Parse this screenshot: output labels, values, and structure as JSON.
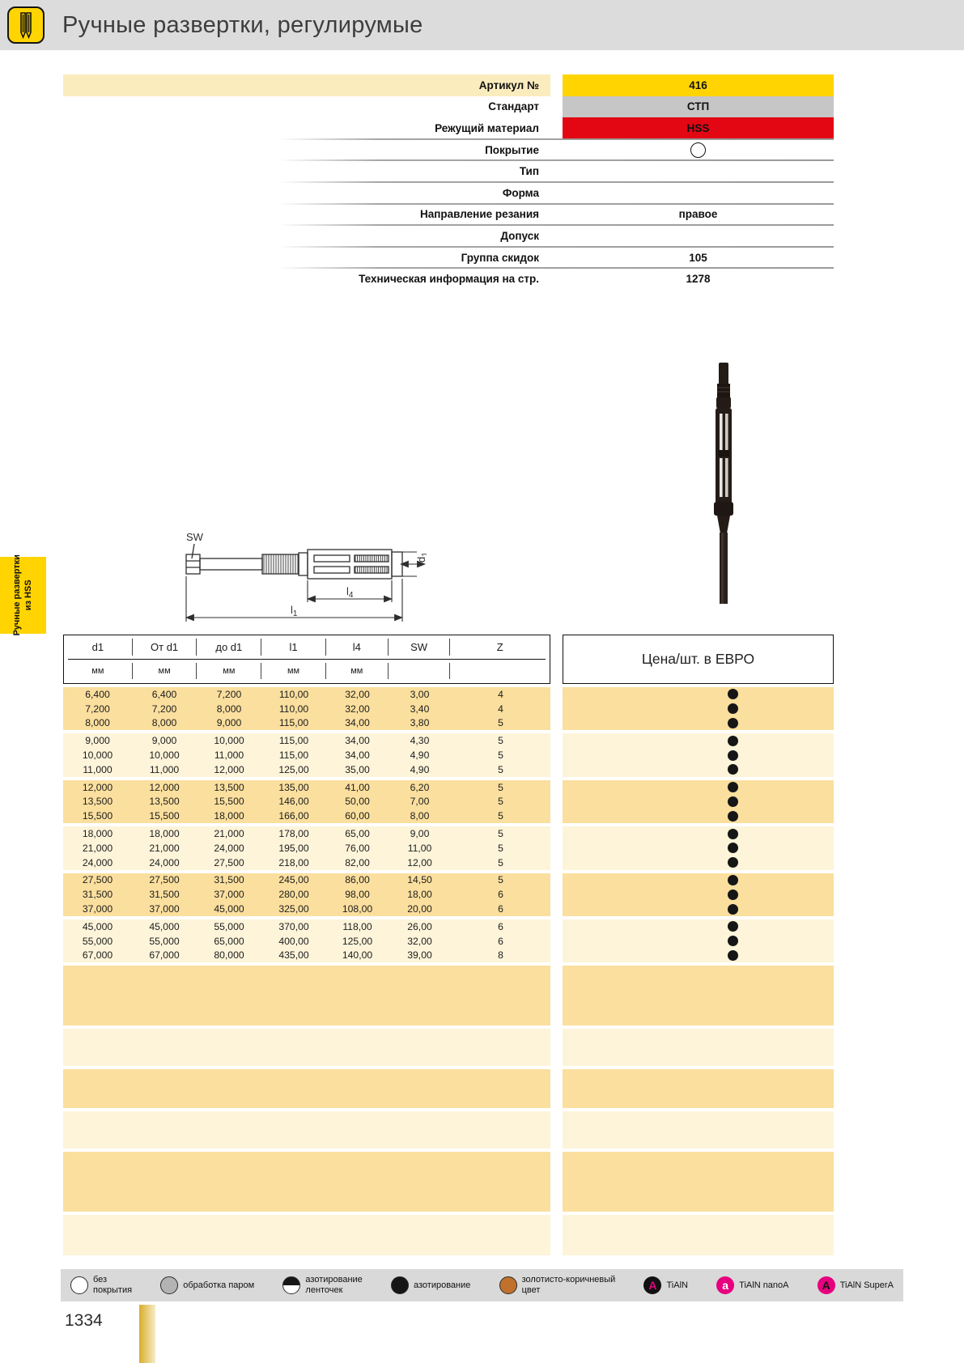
{
  "header": {
    "title": "Ручные развертки, регулирумые"
  },
  "side_tab": {
    "line1": "Ручные развертки",
    "line2": "из HSS"
  },
  "spec": {
    "rows": [
      {
        "label": "Артикул №",
        "value": "416",
        "style": "gold"
      },
      {
        "label": "Стандарт",
        "value": "СТП",
        "style": "gray"
      },
      {
        "label": "Режущий материал",
        "value": "HSS",
        "style": "red"
      },
      {
        "label": "Покрытие",
        "value": "",
        "style": "icon-circle"
      },
      {
        "label": "Тип",
        "value": "",
        "style": "plain"
      },
      {
        "label": "Форма",
        "value": "",
        "style": "plain"
      },
      {
        "label": "Направление резания",
        "value": "правое",
        "style": "plain"
      },
      {
        "label": "Допуск",
        "value": "",
        "style": "plain"
      },
      {
        "label": "Группа скидок",
        "value": "105",
        "style": "plain"
      },
      {
        "label": "Техническая информация на стр.",
        "value": "1278",
        "style": "plain"
      }
    ]
  },
  "drawing": {
    "labels": {
      "sw": "SW",
      "l4_letter": "l",
      "l4_sub": "4",
      "l1_letter": "l",
      "l1_sub": "1",
      "d1_letter": "d",
      "d1_sub": "1"
    }
  },
  "table": {
    "columns": [
      "d1",
      "От d1",
      "до d1",
      "l1",
      "l4",
      "SW",
      "Z"
    ],
    "units": [
      "мм",
      "мм",
      "мм",
      "мм",
      "мм",
      "",
      ""
    ],
    "price_header": "Цена/шт. в ЕВРО",
    "rows": [
      [
        "6,400",
        "6,400",
        "7,200",
        "110,00",
        "32,00",
        "3,00",
        "4"
      ],
      [
        "7,200",
        "7,200",
        "8,000",
        "110,00",
        "32,00",
        "3,40",
        "4"
      ],
      [
        "8,000",
        "8,000",
        "9,000",
        "115,00",
        "34,00",
        "3,80",
        "5"
      ],
      [
        "9,000",
        "9,000",
        "10,000",
        "115,00",
        "34,00",
        "4,30",
        "5"
      ],
      [
        "10,000",
        "10,000",
        "11,000",
        "115,00",
        "34,00",
        "4,90",
        "5"
      ],
      [
        "11,000",
        "11,000",
        "12,000",
        "125,00",
        "35,00",
        "4,90",
        "5"
      ],
      [
        "12,000",
        "12,000",
        "13,500",
        "135,00",
        "41,00",
        "6,20",
        "5"
      ],
      [
        "13,500",
        "13,500",
        "15,500",
        "146,00",
        "50,00",
        "7,00",
        "5"
      ],
      [
        "15,500",
        "15,500",
        "18,000",
        "166,00",
        "60,00",
        "8,00",
        "5"
      ],
      [
        "18,000",
        "18,000",
        "21,000",
        "178,00",
        "65,00",
        "9,00",
        "5"
      ],
      [
        "21,000",
        "21,000",
        "24,000",
        "195,00",
        "76,00",
        "11,00",
        "5"
      ],
      [
        "24,000",
        "24,000",
        "27,500",
        "218,00",
        "82,00",
        "12,00",
        "5"
      ],
      [
        "27,500",
        "27,500",
        "31,500",
        "245,00",
        "86,00",
        "14,50",
        "5"
      ],
      [
        "31,500",
        "31,500",
        "37,000",
        "280,00",
        "98,00",
        "18,00",
        "6"
      ],
      [
        "37,000",
        "37,000",
        "45,000",
        "325,00",
        "108,00",
        "20,00",
        "6"
      ],
      [
        "45,000",
        "45,000",
        "55,000",
        "370,00",
        "118,00",
        "26,00",
        "6"
      ],
      [
        "55,000",
        "55,000",
        "65,000",
        "400,00",
        "125,00",
        "32,00",
        "6"
      ],
      [
        "67,000",
        "67,000",
        "80,000",
        "435,00",
        "140,00",
        "39,00",
        "8"
      ]
    ],
    "empty_band_count": 6
  },
  "legend": {
    "items": [
      {
        "icon": "no-coating-icon",
        "type": "circle",
        "fill": "#ffffff",
        "label": "без\nпокрытия"
      },
      {
        "icon": "steam-treated-icon",
        "type": "circle",
        "fill": "#b3b3b3",
        "label": "обработка паром"
      },
      {
        "icon": "nitrided-lands-icon",
        "type": "circle-half",
        "fill": "#161616",
        "label": "азотирование\nленточек"
      },
      {
        "icon": "nitrided-icon",
        "type": "circle",
        "fill": "#161616",
        "label": "азотирование"
      },
      {
        "icon": "gold-brown-icon",
        "type": "circle",
        "fill": "#c0722c",
        "label": "золотисто-коричневый\nцвет"
      },
      {
        "icon": "tialn-icon",
        "type": "badge",
        "bg": "#111111",
        "fg": "#e6007e",
        "letter": "A",
        "label": "TiAlN"
      },
      {
        "icon": "tialn-nanoa-icon",
        "type": "badge",
        "bg": "#e6007e",
        "fg": "#ffffff",
        "letter": "a",
        "label": "TiAlN nanoA"
      },
      {
        "icon": "tialn-supera-icon",
        "type": "badge",
        "bg": "#e6007e",
        "fg": "#111111",
        "letter": "A",
        "label": "TiAlN SuperA"
      }
    ]
  },
  "footer": {
    "page_number": "1334"
  },
  "colors": {
    "accent_gold": "#ffd400",
    "standard_gray": "#c6c6c6",
    "hss_red": "#e30613",
    "row_dark": "#fbdf9e",
    "row_light": "#fdf4da",
    "legend_bg": "#d9d9d9",
    "magenta": "#e6007e"
  }
}
